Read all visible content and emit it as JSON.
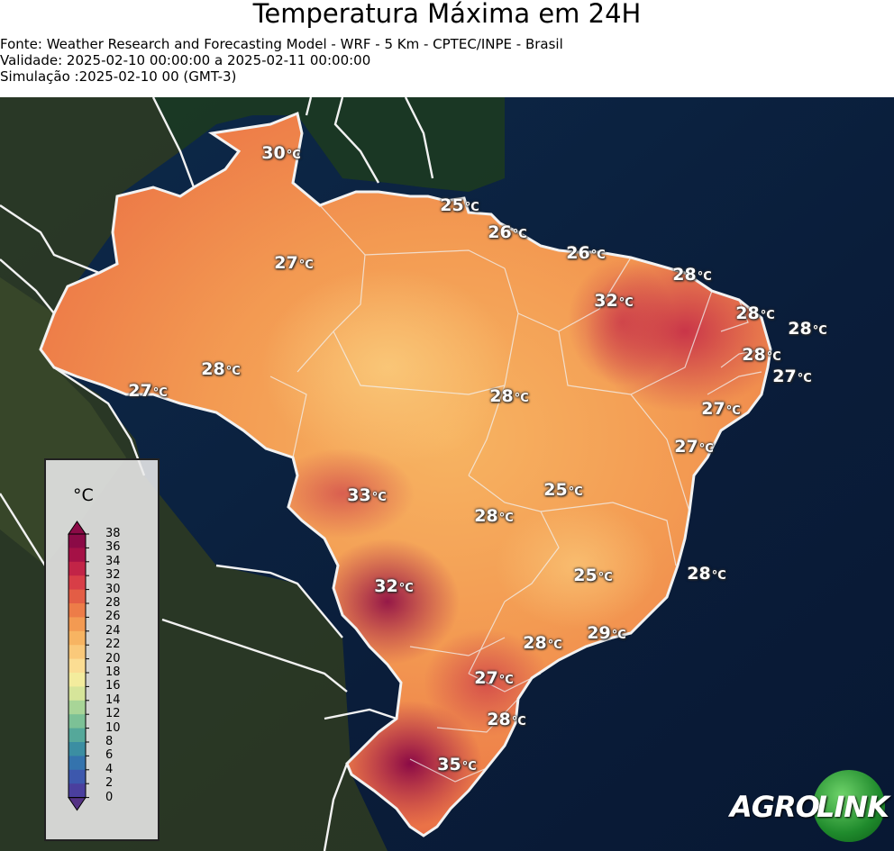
{
  "header": {
    "title": "Temperatura Máxima em 24H",
    "source": "Fonte: Weather Research and Forecasting Model - WRF - 5 Km - CPTEC/INPE - Brasil",
    "validity": "Validade: 2025-02-10 00:00:00 a 2025-02-11 00:00:00",
    "simulation": "Simulação :2025-02-10 00 (GMT-3)"
  },
  "legend": {
    "unit": "°C",
    "ticks": [
      "38",
      "36",
      "34",
      "32",
      "30",
      "28",
      "26",
      "24",
      "22",
      "20",
      "18",
      "16",
      "14",
      "12",
      "10",
      "8",
      "6",
      "4",
      "2",
      "0"
    ],
    "colors": [
      "#8b0a46",
      "#a51146",
      "#c22447",
      "#d83e47",
      "#e35d45",
      "#ed7c48",
      "#f39a52",
      "#f7b462",
      "#fac97a",
      "#fbdd93",
      "#f3ec9d",
      "#d6e59a",
      "#a8d597",
      "#7cc196",
      "#55a89a",
      "#3b8ea2",
      "#3473ad",
      "#3d58ad",
      "#4a3f9e",
      "#543284"
    ]
  },
  "map": {
    "unit_label": "°C",
    "labels": [
      {
        "value": "30"
      },
      {
        "value": "25"
      },
      {
        "value": "26"
      },
      {
        "value": "26"
      },
      {
        "value": "27"
      },
      {
        "value": "28"
      },
      {
        "value": "32"
      },
      {
        "value": "28"
      },
      {
        "value": "28"
      },
      {
        "value": "28"
      },
      {
        "value": "27"
      },
      {
        "value": "28"
      },
      {
        "value": "27"
      },
      {
        "value": "28"
      },
      {
        "value": "27"
      },
      {
        "value": "27"
      },
      {
        "value": "33"
      },
      {
        "value": "25"
      },
      {
        "value": "28"
      },
      {
        "value": "25"
      },
      {
        "value": "28"
      },
      {
        "value": "32"
      },
      {
        "value": "29"
      },
      {
        "value": "28"
      },
      {
        "value": "27"
      },
      {
        "value": "28"
      },
      {
        "value": "35"
      }
    ]
  },
  "logo": {
    "text_left": "AGRO",
    "text_right": "LINK"
  }
}
